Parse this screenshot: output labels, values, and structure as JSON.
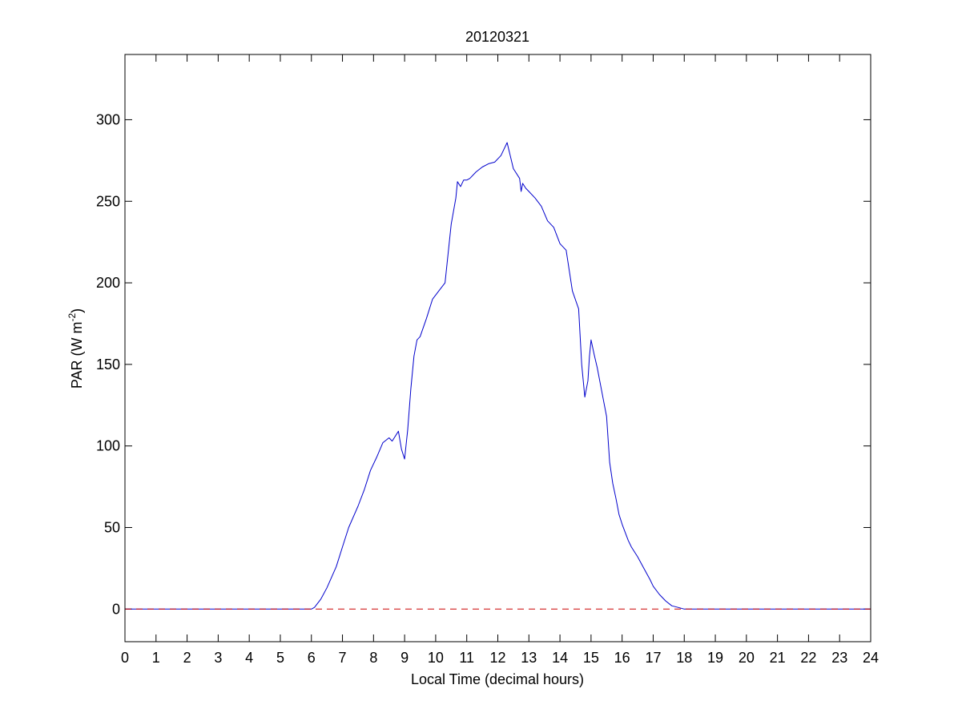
{
  "chart_data": {
    "type": "line",
    "title": "20120321",
    "xlabel": "Local Time (decimal hours)",
    "ylabel_main": "PAR (W m",
    "ylabel_sup": "-2",
    "ylabel_close": ")",
    "xlim": [
      0,
      24
    ],
    "ylim": [
      -20,
      340
    ],
    "xticks": [
      0,
      1,
      2,
      3,
      4,
      5,
      6,
      7,
      8,
      9,
      10,
      11,
      12,
      13,
      14,
      15,
      16,
      17,
      18,
      19,
      20,
      21,
      22,
      23,
      24
    ],
    "yticks": [
      0,
      50,
      100,
      150,
      200,
      250,
      300
    ],
    "grid": false,
    "legend": "none",
    "colors": {
      "par": "#0000cc",
      "zero_line": "#cc0000",
      "axes": "#000000"
    },
    "series": [
      {
        "style": "solid",
        "x": [
          0,
          6.0,
          6.1,
          6.3,
          6.5,
          6.8,
          7.0,
          7.2,
          7.5,
          7.7,
          7.9,
          8.1,
          8.3,
          8.5,
          8.6,
          8.8,
          8.9,
          9.0,
          9.1,
          9.2,
          9.3,
          9.4,
          9.5,
          9.7,
          9.9,
          10.1,
          10.3,
          10.5,
          10.65,
          10.7,
          10.8,
          10.9,
          11.0,
          11.1,
          11.3,
          11.5,
          11.7,
          11.9,
          12.1,
          12.3,
          12.5,
          12.7,
          12.75,
          12.8,
          12.9,
          13.0,
          13.2,
          13.4,
          13.6,
          13.8,
          14.0,
          14.2,
          14.4,
          14.6,
          14.7,
          14.8,
          14.9,
          14.95,
          15.0,
          15.1,
          15.2,
          15.3,
          15.4,
          15.5,
          15.6,
          15.7,
          15.8,
          15.9,
          16.0,
          16.1,
          16.2,
          16.3,
          16.5,
          16.7,
          16.9,
          17.0,
          17.2,
          17.4,
          17.6,
          17.8,
          18.0,
          18.2,
          18.5,
          18.7,
          19.0,
          24
        ],
        "y": [
          0,
          0,
          1,
          6,
          13,
          26,
          38,
          50,
          63,
          73,
          85,
          93,
          102,
          105,
          103,
          109,
          98,
          92,
          110,
          135,
          155,
          165,
          167,
          178,
          190,
          195,
          200,
          236,
          252,
          262,
          259,
          263,
          263,
          264,
          268,
          271,
          273,
          274,
          278,
          286,
          270,
          264,
          256,
          261,
          258,
          256,
          252,
          247,
          238,
          234,
          224,
          220,
          195,
          184,
          150,
          130,
          140,
          155,
          165,
          156,
          148,
          138,
          128,
          118,
          90,
          77,
          68,
          58,
          52,
          47,
          42,
          38,
          32,
          25,
          18,
          14,
          9,
          5,
          2,
          1,
          0,
          0,
          0,
          0,
          0,
          0
        ]
      },
      {
        "style": "dashed",
        "x": [
          0,
          24
        ],
        "y": [
          0,
          0
        ]
      }
    ]
  }
}
